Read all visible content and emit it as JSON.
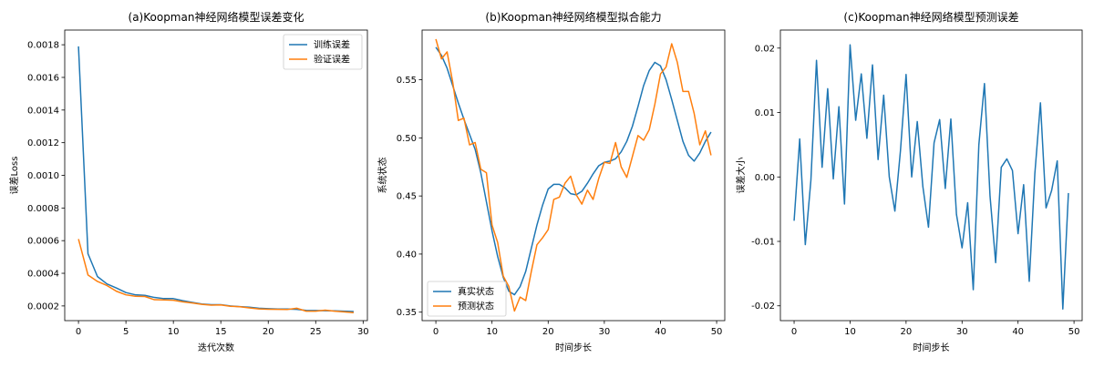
{
  "colors": {
    "blue": "#1f77b4",
    "orange": "#ff7f0e"
  },
  "chart_data": [
    {
      "type": "line",
      "title": "(a)Koopman神经网络模型误差变化",
      "xlabel": "迭代次数",
      "ylabel": "误差Loss",
      "xlim": [
        -1.45,
        30.45
      ],
      "ylim": [
        0.00011,
        0.00189
      ],
      "xticks": [
        0,
        5,
        10,
        15,
        20,
        25,
        30
      ],
      "yticks": [
        0.0002,
        0.0004,
        0.0006,
        0.0008,
        0.001,
        0.0012,
        0.0014,
        0.0016,
        0.0018
      ],
      "ytick_labels": [
        "0.0002",
        "0.0004",
        "0.0006",
        "0.0008",
        "0.0010",
        "0.0012",
        "0.0014",
        "0.0016",
        "0.0018"
      ],
      "legend": "upper right",
      "x": [
        0,
        1,
        2,
        3,
        4,
        5,
        6,
        7,
        8,
        9,
        10,
        11,
        12,
        13,
        14,
        15,
        16,
        17,
        18,
        19,
        20,
        21,
        22,
        23,
        24,
        25,
        26,
        27,
        28,
        29
      ],
      "series": [
        {
          "name": "训练误差",
          "color": "#1f77b4",
          "values": [
            0.00179,
            0.00052,
            0.00038,
            0.000335,
            0.00031,
            0.000282,
            0.000268,
            0.000265,
            0.000252,
            0.000245,
            0.000245,
            0.000232,
            0.000222,
            0.000212,
            0.000208,
            0.000208,
            0.0002,
            0.000196,
            0.000192,
            0.000186,
            0.000183,
            0.000181,
            0.000181,
            0.000179,
            0.000173,
            0.000172,
            0.000171,
            0.00017,
            0.000168,
            0.000166
          ]
        },
        {
          "name": "验证误差",
          "color": "#ff7f0e",
          "values": [
            0.00061,
            0.00039,
            0.00035,
            0.000325,
            0.00029,
            0.000268,
            0.000259,
            0.000258,
            0.000238,
            0.000237,
            0.000235,
            0.000225,
            0.000218,
            0.00021,
            0.000205,
            0.000206,
            0.000198,
            0.000195,
            0.000188,
            0.000182,
            0.00018,
            0.000179,
            0.000178,
            0.000186,
            0.000168,
            0.000168,
            0.000174,
            0.000168,
            0.000164,
            0.000159
          ]
        }
      ]
    },
    {
      "type": "line",
      "title": "(b)Koopman神经网络模型拟合能力",
      "xlabel": "时间步长",
      "ylabel": "系统状态",
      "xlim": [
        -2.45,
        51.45
      ],
      "ylim": [
        0.3427,
        0.5928
      ],
      "xticks": [
        0,
        10,
        20,
        30,
        40,
        50
      ],
      "yticks": [
        0.35,
        0.4,
        0.45,
        0.5,
        0.55
      ],
      "ytick_labels": [
        "0.35",
        "0.40",
        "0.45",
        "0.50",
        "0.55"
      ],
      "legend": "lower left",
      "x": [
        0,
        1,
        2,
        3,
        4,
        5,
        6,
        7,
        8,
        9,
        10,
        11,
        12,
        13,
        14,
        15,
        16,
        17,
        18,
        19,
        20,
        21,
        22,
        23,
        24,
        25,
        26,
        27,
        28,
        29,
        30,
        31,
        32,
        33,
        34,
        35,
        36,
        37,
        38,
        39,
        40,
        41,
        42,
        43,
        44,
        45,
        46,
        47,
        48,
        49
      ],
      "series": [
        {
          "name": "真实状态",
          "color": "#1f77b4",
          "values": [
            0.578,
            0.571,
            0.56,
            0.545,
            0.53,
            0.516,
            0.503,
            0.49,
            0.47,
            0.445,
            0.42,
            0.398,
            0.38,
            0.368,
            0.365,
            0.372,
            0.385,
            0.405,
            0.425,
            0.442,
            0.456,
            0.46,
            0.46,
            0.457,
            0.452,
            0.451,
            0.454,
            0.461,
            0.469,
            0.476,
            0.479,
            0.48,
            0.482,
            0.488,
            0.497,
            0.51,
            0.527,
            0.545,
            0.558,
            0.565,
            0.562,
            0.55,
            0.533,
            0.515,
            0.497,
            0.485,
            0.48,
            0.487,
            0.497,
            0.505
          ]
        },
        {
          "name": "预测状态",
          "color": "#ff7f0e",
          "values": [
            0.585,
            0.568,
            0.574,
            0.548,
            0.515,
            0.517,
            0.494,
            0.496,
            0.473,
            0.47,
            0.425,
            0.41,
            0.381,
            0.372,
            0.351,
            0.363,
            0.36,
            0.385,
            0.408,
            0.414,
            0.421,
            0.447,
            0.449,
            0.461,
            0.467,
            0.451,
            0.443,
            0.455,
            0.447,
            0.465,
            0.479,
            0.478,
            0.496,
            0.475,
            0.466,
            0.484,
            0.502,
            0.498,
            0.507,
            0.529,
            0.555,
            0.561,
            0.581,
            0.565,
            0.54,
            0.54,
            0.521,
            0.494,
            0.506,
            0.485
          ]
        }
      ]
    },
    {
      "type": "line",
      "title": "(c)Koopman神经网络模型预测误差",
      "xlabel": "时间步长",
      "ylabel": "误差大小",
      "xlim": [
        -2.45,
        51.45
      ],
      "ylim": [
        -0.0223,
        0.0228
      ],
      "xticks": [
        0,
        10,
        20,
        30,
        40,
        50
      ],
      "yticks": [
        -0.02,
        -0.01,
        0.0,
        0.01,
        0.02
      ],
      "ytick_labels": [
        "-0.02",
        "-0.01",
        "0.00",
        "0.01",
        "0.02"
      ],
      "x": [
        0,
        1,
        2,
        3,
        4,
        5,
        6,
        7,
        8,
        9,
        10,
        11,
        12,
        13,
        14,
        15,
        16,
        17,
        18,
        19,
        20,
        21,
        22,
        23,
        24,
        25,
        26,
        27,
        28,
        29,
        30,
        31,
        32,
        33,
        34,
        35,
        36,
        37,
        38,
        39,
        40,
        41,
        42,
        43,
        44,
        45,
        46,
        47,
        48,
        49
      ],
      "series": [
        {
          "color": "#1f77b4",
          "values": [
            -0.0068,
            0.0059,
            -0.0105,
            -0.0005,
            0.0181,
            0.0015,
            0.0137,
            -0.0003,
            0.0109,
            -0.0042,
            0.0205,
            0.0088,
            0.016,
            0.006,
            0.0174,
            0.0027,
            0.0127,
            0.0,
            -0.0053,
            0.0041,
            0.0159,
            0.0,
            0.0086,
            -0.0015,
            -0.0078,
            0.0053,
            0.0089,
            -0.0018,
            0.009,
            -0.0058,
            -0.011,
            -0.004,
            -0.0175,
            0.005,
            0.0145,
            -0.003,
            -0.0133,
            0.0015,
            0.0028,
            0.001,
            -0.0088,
            -0.0012,
            -0.0162,
            0.0005,
            0.0115,
            -0.0048,
            -0.0021,
            0.0025,
            -0.0205,
            -0.0025
          ]
        }
      ]
    }
  ]
}
